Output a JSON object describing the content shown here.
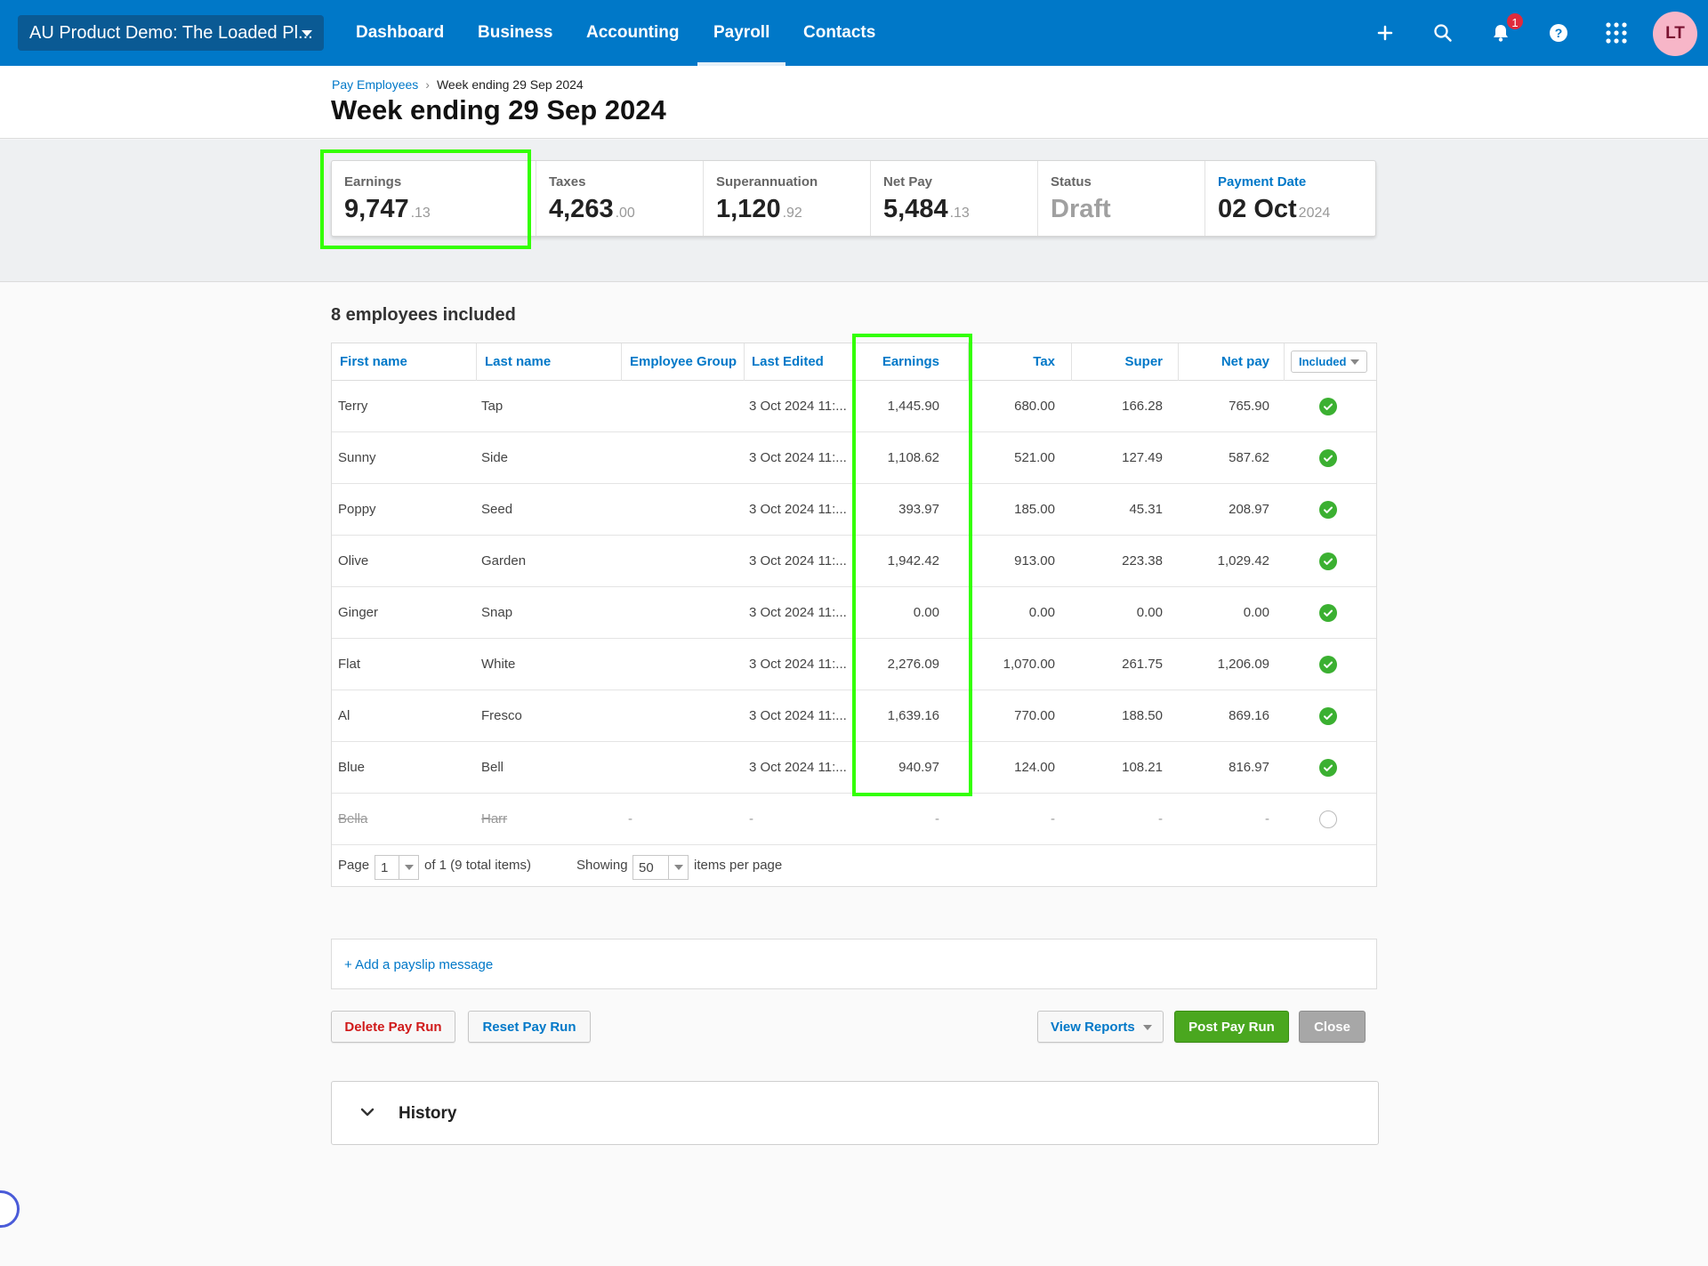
{
  "nav": {
    "org_name": "AU Product Demo: The Loaded Pl...",
    "links": [
      "Dashboard",
      "Business",
      "Accounting",
      "Payroll",
      "Contacts"
    ],
    "active": "Payroll",
    "notification_count": "1",
    "avatar_initials": "LT"
  },
  "breadcrumb": {
    "parent": "Pay Employees",
    "current": "Week ending 29 Sep 2024"
  },
  "page_title": "Week ending 29 Sep 2024",
  "summary": {
    "earnings": {
      "label": "Earnings",
      "value": "9,747",
      "decimal": ".13"
    },
    "taxes": {
      "label": "Taxes",
      "value": "4,263",
      "decimal": ".00"
    },
    "super": {
      "label": "Superannuation",
      "value": "1,120",
      "decimal": ".92"
    },
    "netpay": {
      "label": "Net Pay",
      "value": "5,484",
      "decimal": ".13"
    },
    "status": {
      "label": "Status",
      "value": "Draft"
    },
    "paydate": {
      "label": "Payment Date",
      "value": "02 Oct",
      "decimal": "2024"
    }
  },
  "employees_title": "8 employees included",
  "table": {
    "headers": {
      "first": "First name",
      "last": "Last name",
      "group": "Employee Group",
      "edited": "Last Edited",
      "earnings": "Earnings",
      "tax": "Tax",
      "super": "Super",
      "netpay": "Net pay",
      "included": "Included"
    },
    "rows": [
      {
        "first": "Terry",
        "last": "Tap",
        "group": "",
        "edited": "3 Oct 2024 11:...",
        "earnings": "1,445.90",
        "tax": "680.00",
        "super": "166.28",
        "netpay": "765.90"
      },
      {
        "first": "Sunny",
        "last": "Side",
        "group": "",
        "edited": "3 Oct 2024 11:...",
        "earnings": "1,108.62",
        "tax": "521.00",
        "super": "127.49",
        "netpay": "587.62"
      },
      {
        "first": "Poppy",
        "last": "Seed",
        "group": "",
        "edited": "3 Oct 2024 11:...",
        "earnings": "393.97",
        "tax": "185.00",
        "super": "45.31",
        "netpay": "208.97"
      },
      {
        "first": "Olive",
        "last": "Garden",
        "group": "",
        "edited": "3 Oct 2024 11:...",
        "earnings": "1,942.42",
        "tax": "913.00",
        "super": "223.38",
        "netpay": "1,029.42"
      },
      {
        "first": "Ginger",
        "last": "Snap",
        "group": "",
        "edited": "3 Oct 2024 11:...",
        "earnings": "0.00",
        "tax": "0.00",
        "super": "0.00",
        "netpay": "0.00"
      },
      {
        "first": "Flat",
        "last": "White",
        "group": "",
        "edited": "3 Oct 2024 11:...",
        "earnings": "2,276.09",
        "tax": "1,070.00",
        "super": "261.75",
        "netpay": "1,206.09"
      },
      {
        "first": "Al",
        "last": "Fresco",
        "group": "",
        "edited": "3 Oct 2024 11:...",
        "earnings": "1,639.16",
        "tax": "770.00",
        "super": "188.50",
        "netpay": "869.16"
      },
      {
        "first": "Blue",
        "last": "Bell",
        "group": "",
        "edited": "3 Oct 2024 11:...",
        "earnings": "940.97",
        "tax": "124.00",
        "super": "108.21",
        "netpay": "816.97"
      }
    ],
    "excluded_row": {
      "first": "Bella",
      "last": "Harr",
      "group": "-",
      "edited": "-",
      "earnings": "-",
      "tax": "-",
      "super": "-",
      "netpay": "-"
    }
  },
  "pager": {
    "page_label": "Page",
    "page_value": "1",
    "of_text": "of 1 (9 total items)",
    "showing_label": "Showing",
    "per_page_value": "50",
    "per_page_suffix": "items per page"
  },
  "payslip_message": "+ Add a payslip message",
  "buttons": {
    "delete": "Delete Pay Run",
    "reset": "Reset Pay Run",
    "view_reports": "View Reports",
    "post": "Post Pay Run",
    "close": "Close"
  },
  "history_title": "History",
  "colors": {
    "nav": "#0078c8",
    "accent": "#0078c8",
    "success": "#3bb031",
    "highlight": "#33ff00",
    "danger": "#d01a1a"
  }
}
